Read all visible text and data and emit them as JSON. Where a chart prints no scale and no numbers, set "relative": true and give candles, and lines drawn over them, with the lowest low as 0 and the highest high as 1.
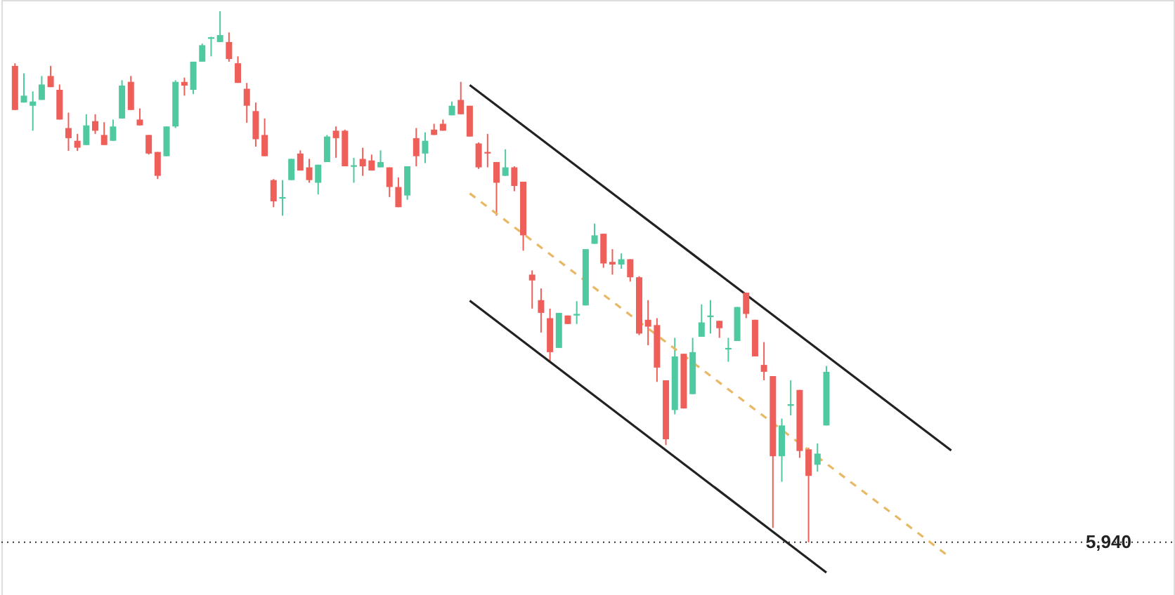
{
  "chart_data": {
    "type": "candlestick",
    "relative": true,
    "tick_labels": false,
    "grid": false,
    "categories": [
      null,
      null,
      null,
      null,
      null,
      null,
      null,
      null,
      null,
      null,
      null,
      null,
      null,
      null,
      null,
      null,
      null,
      null,
      null,
      null,
      null,
      null,
      null,
      null,
      null,
      null,
      null,
      null,
      null,
      null,
      null,
      null,
      null,
      null,
      null,
      null,
      null,
      null,
      null,
      null,
      null,
      null,
      null,
      null,
      null,
      null,
      null,
      null,
      null,
      null,
      null,
      null,
      null,
      null,
      null,
      null,
      null,
      null,
      null,
      null,
      null,
      null,
      null,
      null,
      null,
      null,
      null,
      null,
      null,
      null,
      null,
      null,
      null,
      null,
      null,
      null,
      null,
      null,
      null,
      null,
      null,
      null,
      null,
      null,
      null,
      null,
      null,
      null,
      null,
      null,
      null,
      null,
      null,
      null,
      null,
      null,
      null,
      null,
      null,
      null,
      null,
      null,
      null,
      null,
      null,
      null
    ],
    "annotations": [
      "5,940"
    ],
    "ohlc": [
      [
        0.897,
        0.902,
        0.814,
        0.814
      ],
      [
        0.828,
        0.883,
        0.828,
        0.841
      ],
      [
        0.822,
        0.849,
        0.775,
        0.83
      ],
      [
        0.833,
        0.878,
        0.833,
        0.862
      ],
      [
        0.878,
        0.897,
        0.857,
        0.857
      ],
      [
        0.852,
        0.862,
        0.796,
        0.796
      ],
      [
        0.78,
        0.809,
        0.737,
        0.761
      ],
      [
        0.756,
        0.769,
        0.737,
        0.743
      ],
      [
        0.748,
        0.806,
        0.748,
        0.785
      ],
      [
        0.793,
        0.806,
        0.769,
        0.775
      ],
      [
        0.767,
        0.791,
        0.748,
        0.748
      ],
      [
        0.756,
        0.796,
        0.756,
        0.783
      ],
      [
        0.798,
        0.87,
        0.798,
        0.86
      ],
      [
        0.867,
        0.878,
        0.814,
        0.814
      ],
      [
        0.796,
        0.817,
        0.785,
        0.785
      ],
      [
        0.767,
        0.767,
        0.73,
        0.732
      ],
      [
        0.735,
        0.735,
        0.684,
        0.69
      ],
      [
        0.727,
        0.783,
        0.727,
        0.783
      ],
      [
        0.783,
        0.87,
        0.78,
        0.867
      ],
      [
        0.867,
        0.875,
        0.841,
        0.86
      ],
      [
        0.852,
        0.905,
        0.844,
        0.905
      ],
      [
        0.905,
        0.939,
        0.905,
        0.936
      ],
      [
        0.948,
        0.952,
        0.915,
        0.951
      ],
      [
        0.942,
        1,
        0.942,
        0.955
      ],
      [
        0.942,
        0.96,
        0.905,
        0.91
      ],
      [
        0.902,
        0.915,
        0.865,
        0.865
      ],
      [
        0.854,
        0.865,
        0.79,
        0.822
      ],
      [
        0.812,
        0.828,
        0.745,
        0.759
      ],
      [
        0.767,
        0.798,
        0.727,
        0.727
      ],
      [
        0.682,
        0.684,
        0.631,
        0.642
      ],
      [
        0.647,
        0.682,
        0.615,
        0.65
      ],
      [
        0.682,
        0.722,
        0.682,
        0.722
      ],
      [
        0.732,
        0.738,
        0.7,
        0.7
      ],
      [
        0.706,
        0.722,
        0.677,
        0.682
      ],
      [
        0.677,
        0.711,
        0.655,
        0.711
      ],
      [
        0.716,
        0.767,
        0.716,
        0.764
      ],
      [
        0.775,
        0.783,
        0.724,
        0.761
      ],
      [
        0.775,
        0.777,
        0.708,
        0.708
      ],
      [
        0.707,
        0.724,
        0.677,
        0.71
      ],
      [
        0.722,
        0.743,
        0.69,
        0.708
      ],
      [
        0.719,
        0.73,
        0.7,
        0.7
      ],
      [
        0.706,
        0.738,
        0.706,
        0.716
      ],
      [
        0.706,
        0.706,
        0.65,
        0.669
      ],
      [
        0.669,
        0.687,
        0.631,
        0.631
      ],
      [
        0.653,
        0.708,
        0.645,
        0.708
      ],
      [
        0.761,
        0.78,
        0.708,
        0.727
      ],
      [
        0.732,
        0.772,
        0.714,
        0.756
      ],
      [
        0.777,
        0.788,
        0.767,
        0.767
      ],
      [
        0.788,
        0.796,
        0.775,
        0.775
      ],
      [
        0.804,
        0.83,
        0.804,
        0.822
      ],
      [
        0.833,
        0.867,
        0.806,
        0.806
      ],
      [
        0.822,
        0.822,
        0.764,
        0.764
      ],
      [
        0.751,
        0.753,
        0.703,
        0.706
      ],
      [
        0.735,
        0.769,
        0.706,
        0.732
      ],
      [
        0.716,
        0.716,
        0.615,
        0.677
      ],
      [
        0.69,
        0.74,
        0.69,
        0.706
      ],
      [
        0.706,
        0.708,
        0.661,
        0.671
      ],
      [
        0.679,
        0.679,
        0.549,
        0.578
      ],
      [
        0.504,
        0.512,
        0.44,
        0.493
      ],
      [
        0.456,
        0.478,
        0.395,
        0.432
      ],
      [
        0.422,
        0.44,
        0.342,
        0.358
      ],
      [
        0.366,
        0.432,
        0.366,
        0.432
      ],
      [
        0.427,
        0.427,
        0.411,
        0.411
      ],
      [
        0.427,
        0.454,
        0.411,
        0.43
      ],
      [
        0.446,
        0.552,
        0.446,
        0.552
      ],
      [
        0.562,
        0.6,
        0.562,
        0.578
      ],
      [
        0.581,
        0.581,
        0.517,
        0.525
      ],
      [
        0.528,
        0.552,
        0.504,
        0.523
      ],
      [
        0.523,
        0.544,
        0.515,
        0.533
      ],
      [
        0.533,
        0.533,
        0.491,
        0.499
      ],
      [
        0.499,
        0.501,
        0.39,
        0.393
      ],
      [
        0.419,
        0.456,
        0.371,
        0.406
      ],
      [
        0.409,
        0.422,
        0.302,
        0.329
      ],
      [
        0.305,
        0.305,
        0.183,
        0.194
      ],
      [
        0.249,
        0.385,
        0.241,
        0.35
      ],
      [
        0.355,
        0.355,
        0.252,
        0.252
      ],
      [
        0.279,
        0.385,
        0.279,
        0.358
      ],
      [
        0.387,
        0.448,
        0.387,
        0.414
      ],
      [
        0.424,
        0.456,
        0.393,
        0.427
      ],
      [
        0.417,
        0.417,
        0.385,
        0.403
      ],
      [
        0.363,
        0.385,
        0.34,
        0.366
      ],
      [
        0.379,
        0.443,
        0.379,
        0.443
      ],
      [
        0.47,
        0.47,
        0.422,
        0.43
      ],
      [
        0.419,
        0.419,
        0.35,
        0.35
      ],
      [
        0.334,
        0.377,
        0.305,
        0.321
      ],
      [
        0.313,
        0.313,
        0.027,
        0.162
      ],
      [
        0.162,
        0.233,
        0.114,
        0.22
      ],
      [
        0.257,
        0.305,
        0.239,
        0.26
      ],
      [
        0.287,
        0.287,
        0.159,
        0.172
      ],
      [
        0.175,
        0.178,
        0,
        0.125
      ],
      [
        0.146,
        0.186,
        0.133,
        0.167
      ],
      [
        0.22,
        0.332,
        0.22,
        0.321
      ],
      null,
      null,
      null,
      null,
      null,
      null,
      null,
      null,
      null,
      null,
      null,
      null,
      null,
      null
    ],
    "colors": [
      "#ef5f5a",
      "#4fc9a0",
      "#4fc9a0",
      "#4fc9a0",
      "#ef5f5a",
      "#ef5f5a",
      "#ef5f5a",
      "#ef5f5a",
      "#4fc9a0",
      "#ef5f5a",
      "#ef5f5a",
      "#4fc9a0",
      "#4fc9a0",
      "#ef5f5a",
      "#ef5f5a",
      "#ef5f5a",
      "#ef5f5a",
      "#4fc9a0",
      "#4fc9a0",
      "#ef5f5a",
      "#4fc9a0",
      "#4fc9a0",
      "#4fc9a0",
      "#4fc9a0",
      "#ef5f5a",
      "#ef5f5a",
      "#ef5f5a",
      "#ef5f5a",
      "#ef5f5a",
      "#ef5f5a",
      "#4fc9a0",
      "#4fc9a0",
      "#ef5f5a",
      "#ef5f5a",
      "#4fc9a0",
      "#4fc9a0",
      "#ef5f5a",
      "#ef5f5a",
      "#4fc9a0",
      "#ef5f5a",
      "#ef5f5a",
      "#4fc9a0",
      "#ef5f5a",
      "#ef5f5a",
      "#4fc9a0",
      "#ef5f5a",
      "#4fc9a0",
      "#ef5f5a",
      "#ef5f5a",
      "#4fc9a0",
      "#ef5f5a",
      "#ef5f5a",
      "#ef5f5a",
      "#ef5f5a",
      "#ef5f5a",
      "#4fc9a0",
      "#ef5f5a",
      "#ef5f5a",
      "#ef5f5a",
      "#ef5f5a",
      "#ef5f5a",
      "#4fc9a0",
      "#ef5f5a",
      "#4fc9a0",
      "#4fc9a0",
      "#4fc9a0",
      "#ef5f5a",
      "#ef5f5a",
      "#4fc9a0",
      "#ef5f5a",
      "#ef5f5a",
      "#ef5f5a",
      "#ef5f5a",
      "#ef5f5a",
      "#4fc9a0",
      "#ef5f5a",
      "#4fc9a0",
      "#4fc9a0",
      "#4fc9a0",
      "#ef5f5a",
      "#4fc9a0",
      "#4fc9a0",
      "#ef5f5a",
      "#ef5f5a",
      "#ef5f5a",
      "#ef5f5a",
      "#4fc9a0",
      "#4fc9a0",
      "#ef5f5a",
      "#ef5f5a",
      "#4fc9a0",
      "#4fc9a0",
      null,
      null,
      null,
      null,
      null,
      null,
      null,
      null,
      null,
      null,
      null,
      null,
      null,
      null
    ],
    "series": [
      {
        "type": "line",
        "color": "#222222",
        "line_style": "solid",
        "values": [
          null,
          null,
          null,
          null,
          null,
          null,
          null,
          null,
          null,
          null,
          null,
          null,
          null,
          null,
          null,
          null,
          null,
          null,
          null,
          null,
          null,
          null,
          null,
          null,
          null,
          null,
          null,
          null,
          null,
          null,
          null,
          null,
          null,
          null,
          null,
          null,
          null,
          null,
          null,
          null,
          null,
          null,
          null,
          null,
          null,
          null,
          null,
          null,
          null,
          null,
          null,
          0.861,
          null,
          null,
          null,
          null,
          null,
          null,
          null,
          null,
          null,
          null,
          null,
          null,
          null,
          null,
          null,
          null,
          null,
          null,
          null,
          null,
          null,
          null,
          null,
          null,
          null,
          null,
          null,
          null,
          null,
          null,
          null,
          null,
          null,
          null,
          null,
          null,
          null,
          null,
          null,
          null,
          null,
          null,
          null,
          null,
          null,
          null,
          null,
          null,
          null,
          null,
          null,
          null,
          null,
          0.173
        ]
      },
      {
        "type": "line",
        "color": "#222222",
        "line_style": "solid",
        "values": [
          null,
          null,
          null,
          null,
          null,
          null,
          null,
          null,
          null,
          null,
          null,
          null,
          null,
          null,
          null,
          null,
          null,
          null,
          null,
          null,
          null,
          null,
          null,
          null,
          null,
          null,
          null,
          null,
          null,
          null,
          null,
          null,
          null,
          null,
          null,
          null,
          null,
          null,
          null,
          null,
          null,
          null,
          null,
          null,
          null,
          null,
          null,
          null,
          null,
          null,
          null,
          0.455,
          null,
          null,
          null,
          null,
          null,
          null,
          null,
          null,
          null,
          null,
          null,
          null,
          null,
          null,
          null,
          null,
          null,
          null,
          null,
          null,
          null,
          null,
          null,
          null,
          null,
          null,
          null,
          null,
          null,
          null,
          null,
          null,
          null,
          null,
          null,
          null,
          null,
          null,
          null,
          -0.057,
          null,
          null,
          null,
          null,
          null,
          null,
          null,
          null,
          null,
          null,
          null,
          null,
          null,
          null
        ]
      },
      {
        "type": "line",
        "color": "#e8b865",
        "line_style": "dashed",
        "values": [
          null,
          null,
          null,
          null,
          null,
          null,
          null,
          null,
          null,
          null,
          null,
          null,
          null,
          null,
          null,
          null,
          null,
          null,
          null,
          null,
          null,
          null,
          null,
          null,
          null,
          null,
          null,
          null,
          null,
          null,
          null,
          null,
          null,
          null,
          null,
          null,
          null,
          null,
          null,
          null,
          null,
          null,
          null,
          null,
          null,
          null,
          null,
          null,
          null,
          null,
          null,
          0.657,
          null,
          null,
          null,
          null,
          null,
          null,
          null,
          null,
          null,
          null,
          null,
          null,
          null,
          null,
          null,
          null,
          null,
          null,
          null,
          null,
          null,
          null,
          null,
          null,
          null,
          null,
          null,
          null,
          null,
          null,
          null,
          null,
          null,
          null,
          null,
          null,
          null,
          null,
          null,
          null,
          null,
          null,
          null,
          null,
          null,
          null,
          null,
          null,
          null,
          null,
          null,
          null,
          null,
          -0.03
        ]
      }
    ],
    "ref_lines": [
      {
        "axis": "y",
        "value": 0,
        "color": "#333333",
        "line_style": "dotted"
      }
    ]
  }
}
